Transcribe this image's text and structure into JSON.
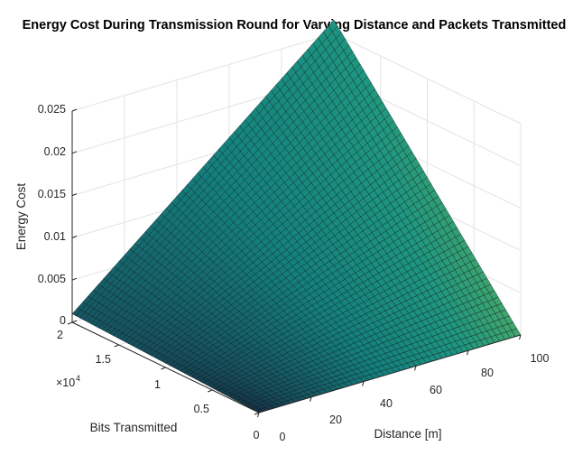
{
  "chart_data": {
    "type": "surface",
    "title": "Energy Cost During Transmission Round for Varying Distance and Packets Transmitted",
    "xlabel": "Distance [m]",
    "ylabel": "Bits Transmitted",
    "zlabel": "Energy Cost",
    "xlim": [
      0,
      100
    ],
    "ylim": [
      0,
      20000
    ],
    "zlim": [
      0,
      0.025
    ],
    "x_ticks": [
      "0",
      "20",
      "40",
      "60",
      "80",
      "100"
    ],
    "y_ticks": [
      "0",
      "0.5",
      "1",
      "1.5",
      "2"
    ],
    "y_exponent_base": "×10",
    "y_exponent_power": "4",
    "z_ticks": [
      "0",
      "0.005",
      "0.01",
      "0.015",
      "0.02",
      "0.025"
    ],
    "grid": true,
    "colormap": "parula",
    "surface_corners": [
      {
        "distance": 0,
        "bits": 0,
        "energy": 0
      },
      {
        "distance": 100,
        "bits": 0,
        "energy": 0
      },
      {
        "distance": 0,
        "bits": 20000,
        "energy": 0.001
      },
      {
        "distance": 100,
        "bits": 20000,
        "energy": 0.0266
      }
    ]
  }
}
